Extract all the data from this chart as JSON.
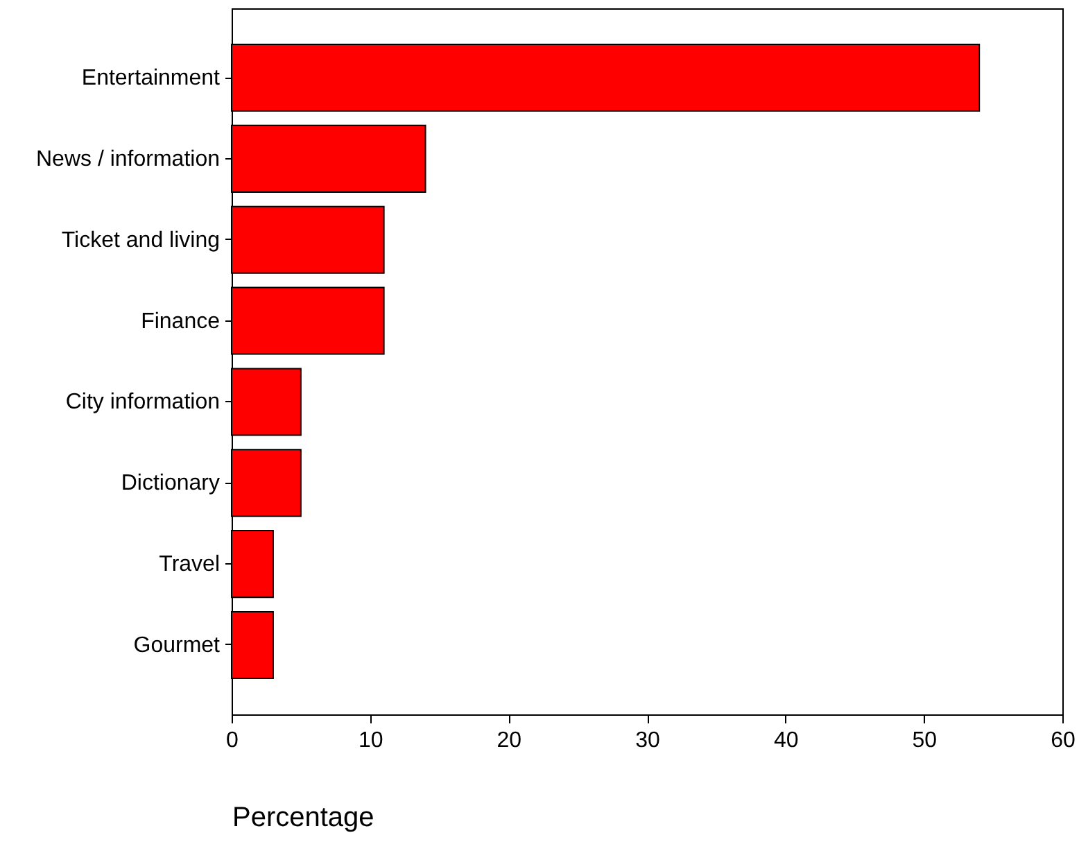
{
  "chart_data": {
    "type": "bar",
    "orientation": "horizontal",
    "xlabel": "Percentage",
    "categories": [
      "Entertainment",
      "News / information",
      "Ticket and living",
      "Finance",
      "City information",
      "Dictionary",
      "Travel",
      "Gourmet"
    ],
    "values": [
      54,
      14,
      11,
      11,
      5,
      5,
      3,
      3
    ],
    "color": "#ff0000",
    "xlim": [
      0,
      60
    ],
    "xticks": [
      0,
      10,
      20,
      30,
      40,
      50,
      60
    ],
    "grid": false
  }
}
